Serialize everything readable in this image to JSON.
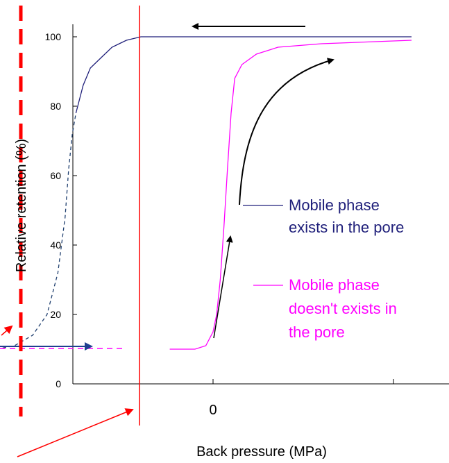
{
  "chart_data": {
    "type": "line",
    "xlabel": "Back pressure (MPa)",
    "ylabel": "Relative retention (%)",
    "ylim": [
      0,
      100
    ],
    "yticks": [
      "0",
      "20",
      "40",
      "60",
      "80",
      "100"
    ],
    "xticks": [
      "0"
    ],
    "grid": false,
    "legend_placement": "right",
    "series": [
      {
        "name": "Mobile phase exists in the pore",
        "label_lines": [
          "Mobile phase",
          "exists in the pore"
        ],
        "color": "#1f1f7a",
        "style": "solid",
        "points": [
          [
            -0.38,
            78
          ],
          [
            -0.36,
            86
          ],
          [
            -0.34,
            91
          ],
          [
            -0.32,
            93
          ],
          [
            -0.3,
            95
          ],
          [
            -0.28,
            97
          ],
          [
            -0.26,
            98
          ],
          [
            -0.24,
            99
          ],
          [
            -0.22,
            99.5
          ],
          [
            -0.2,
            100
          ],
          [
            -0.15,
            100
          ],
          [
            0,
            100
          ],
          [
            0.3,
            100
          ],
          [
            0.55,
            100
          ]
        ]
      },
      {
        "name": "Mobile phase doesn't exists in the pore",
        "label_lines": [
          "Mobile phase",
          "doesn't exists in",
          "the pore"
        ],
        "color": "#ff00ff",
        "style": "solid",
        "points": [
          [
            -0.12,
            10
          ],
          [
            -0.05,
            10
          ],
          [
            -0.02,
            11
          ],
          [
            0,
            15
          ],
          [
            0.01,
            20
          ],
          [
            0.02,
            30
          ],
          [
            0.03,
            45
          ],
          [
            0.04,
            62
          ],
          [
            0.05,
            78
          ],
          [
            0.06,
            88
          ],
          [
            0.08,
            92
          ],
          [
            0.12,
            95
          ],
          [
            0.18,
            97
          ],
          [
            0.3,
            98
          ],
          [
            0.55,
            99
          ]
        ]
      },
      {
        "color": "#1f3f6f",
        "style": "dashed",
        "points": [
          [
            -0.6,
            10
          ],
          [
            -0.55,
            11
          ],
          [
            -0.5,
            14
          ],
          [
            -0.46,
            20
          ],
          [
            -0.43,
            32
          ],
          [
            -0.41,
            48
          ],
          [
            -0.4,
            62
          ],
          [
            -0.39,
            72
          ],
          [
            -0.38,
            78
          ]
        ]
      }
    ],
    "colors": {
      "accent_red": "#ff0000",
      "arrow_black": "#000000",
      "arrow_blue": "#1f3f8f"
    }
  }
}
